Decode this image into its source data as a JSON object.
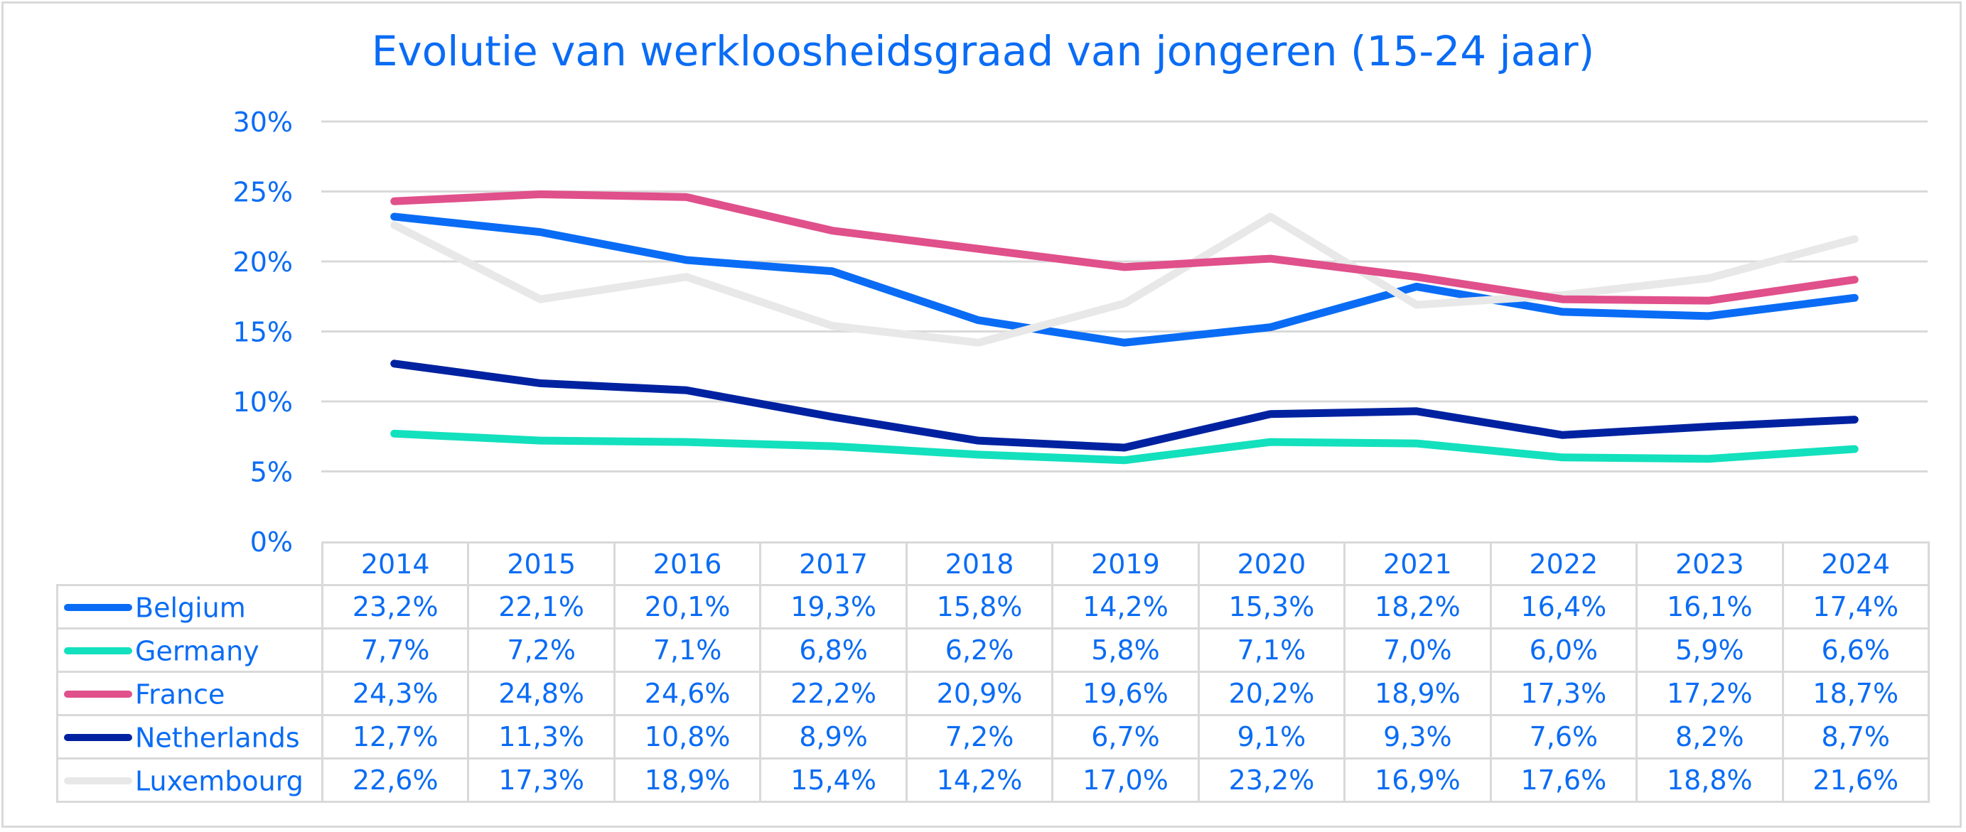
{
  "chart_data": {
    "type": "line",
    "title": "Evolutie van werkloosheidsgraad van jongeren (15-24 jaar)",
    "xlabel": "",
    "ylabel": "",
    "ylim": [
      0,
      30
    ],
    "yticks": [
      0,
      5,
      10,
      15,
      20,
      25,
      30
    ],
    "ytick_labels": [
      "0%",
      "5%",
      "10%",
      "15%",
      "20%",
      "25%",
      "30%"
    ],
    "grid": true,
    "legend": "data-table-bottom",
    "categories": [
      "2014",
      "2015",
      "2016",
      "2017",
      "2018",
      "2019",
      "2020",
      "2021",
      "2022",
      "2023",
      "2024"
    ],
    "series": [
      {
        "name": "Belgium",
        "color": "#0a6cf5",
        "values": [
          23.2,
          22.1,
          20.1,
          19.3,
          15.8,
          14.2,
          15.3,
          18.2,
          16.4,
          16.1,
          17.4
        ],
        "labels": [
          "23,2%",
          "22,1%",
          "20,1%",
          "19,3%",
          "15,8%",
          "14,2%",
          "15,3%",
          "18,2%",
          "16,4%",
          "16,1%",
          "17,4%"
        ]
      },
      {
        "name": "Germany",
        "color": "#13e0bd",
        "values": [
          7.7,
          7.2,
          7.1,
          6.8,
          6.2,
          5.8,
          7.1,
          7.0,
          6.0,
          5.9,
          6.6
        ],
        "labels": [
          "7,7%",
          "7,2%",
          "7,1%",
          "6,8%",
          "6,2%",
          "5,8%",
          "7,1%",
          "7,0%",
          "6,0%",
          "5,9%",
          "6,6%"
        ]
      },
      {
        "name": "France",
        "color": "#e0508b",
        "values": [
          24.3,
          24.8,
          24.6,
          22.2,
          20.9,
          19.6,
          20.2,
          18.9,
          17.3,
          17.2,
          18.7
        ],
        "labels": [
          "24,3%",
          "24,8%",
          "24,6%",
          "22,2%",
          "20,9%",
          "19,6%",
          "20,2%",
          "18,9%",
          "17,3%",
          "17,2%",
          "18,7%"
        ]
      },
      {
        "name": "Netherlands",
        "color": "#0022a0",
        "values": [
          12.7,
          11.3,
          10.8,
          8.9,
          7.2,
          6.7,
          9.1,
          9.3,
          7.6,
          8.2,
          8.7
        ],
        "labels": [
          "12,7%",
          "11,3%",
          "10,8%",
          "8,9%",
          "7,2%",
          "6,7%",
          "9,1%",
          "9,3%",
          "7,6%",
          "8,2%",
          "8,7%"
        ]
      },
      {
        "name": "Luxembourg",
        "color": "#e8e8e8",
        "values": [
          22.6,
          17.3,
          18.9,
          15.4,
          14.2,
          17.0,
          23.2,
          16.9,
          17.6,
          18.8,
          21.6
        ],
        "labels": [
          "22,6%",
          "17,3%",
          "18,9%",
          "15,4%",
          "14,2%",
          "17,0%",
          "23,2%",
          "16,9%",
          "17,6%",
          "18,8%",
          "21,6%"
        ]
      }
    ]
  }
}
